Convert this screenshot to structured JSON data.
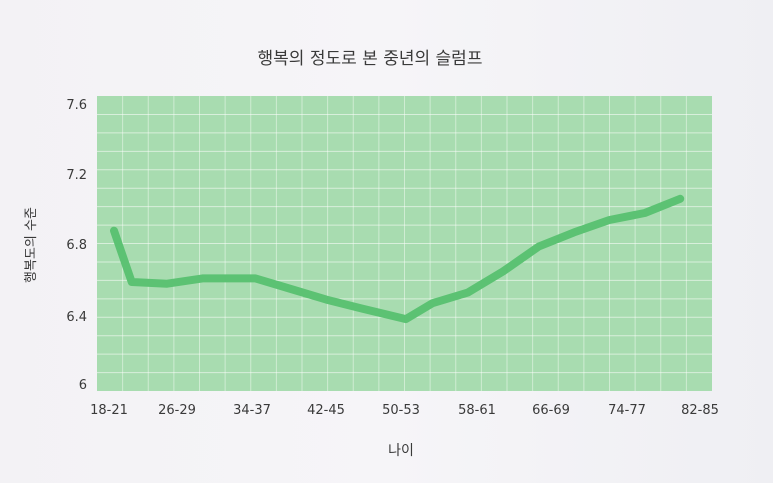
{
  "chart_data": {
    "type": "line",
    "title": "행복의 정도로 본 중년의 슬럼프",
    "xlabel": "나이",
    "ylabel": "행복도의 수준",
    "ylim": [
      6,
      7.6
    ],
    "y_ticks": [
      "7.6",
      "7.2",
      "6.8",
      "6.4",
      "6"
    ],
    "x_tick_labels": [
      "18-21",
      "26-29",
      "34-37",
      "42-45",
      "50-53",
      "58-61",
      "66-69",
      "74-77",
      "82-85"
    ],
    "grid": true,
    "colors": {
      "plot_background": "#a8dcb0",
      "line": "#5cc273",
      "grid": "#ffffff"
    },
    "series": [
      {
        "values": [
          {
            "x": 18,
            "y": 6.85
          },
          {
            "x": 20,
            "y": 6.56
          },
          {
            "x": 24,
            "y": 6.55
          },
          {
            "x": 28,
            "y": 6.58
          },
          {
            "x": 34,
            "y": 6.58
          },
          {
            "x": 38,
            "y": 6.52
          },
          {
            "x": 42,
            "y": 6.46
          },
          {
            "x": 46,
            "y": 6.41
          },
          {
            "x": 51,
            "y": 6.35
          },
          {
            "x": 54,
            "y": 6.44
          },
          {
            "x": 58,
            "y": 6.5
          },
          {
            "x": 62,
            "y": 6.62
          },
          {
            "x": 66,
            "y": 6.76
          },
          {
            "x": 70,
            "y": 6.84
          },
          {
            "x": 74,
            "y": 6.91
          },
          {
            "x": 78,
            "y": 6.95
          },
          {
            "x": 82,
            "y": 7.03
          }
        ]
      }
    ]
  }
}
